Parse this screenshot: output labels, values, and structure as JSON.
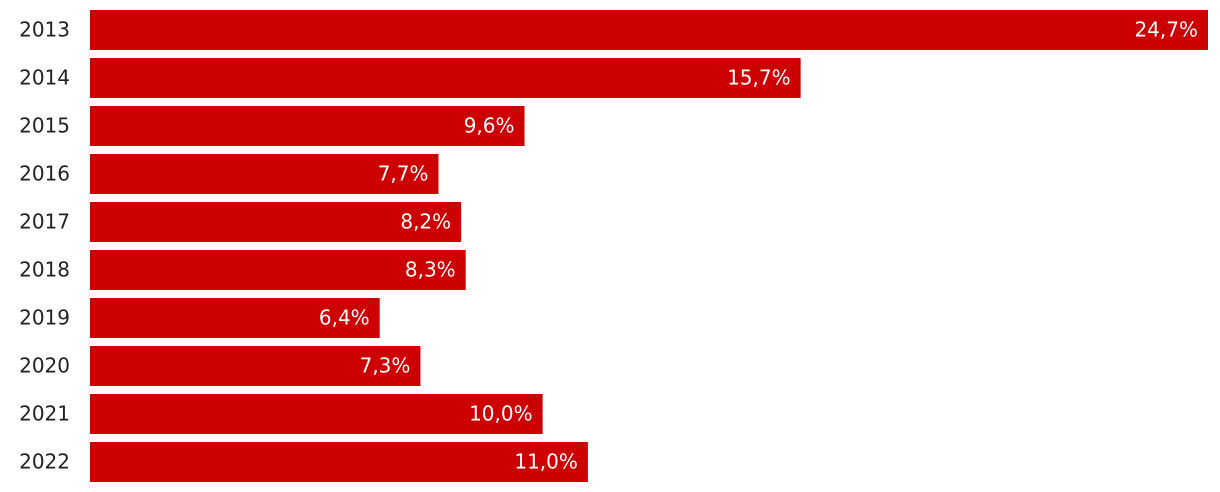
{
  "chart_data": {
    "type": "bar",
    "orientation": "horizontal",
    "categories": [
      "2013",
      "2014",
      "2015",
      "2016",
      "2017",
      "2018",
      "2019",
      "2020",
      "2021",
      "2022"
    ],
    "values": [
      24.7,
      15.7,
      9.6,
      7.7,
      8.2,
      8.3,
      6.4,
      7.3,
      10.0,
      11.0
    ],
    "value_labels": [
      "24,7%",
      "15,7%",
      "9,6%",
      "7,7%",
      "8,2%",
      "8,3%",
      "6,4%",
      "7,3%",
      "10,0%",
      "11,0%"
    ],
    "color": "#cc0000"
  }
}
